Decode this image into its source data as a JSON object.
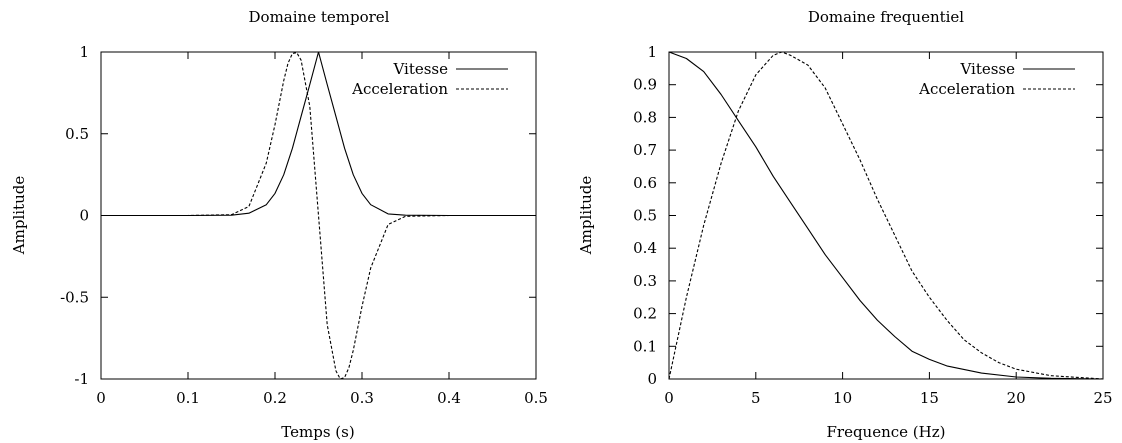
{
  "chart_data": [
    {
      "type": "line",
      "title": "Domaine temporel",
      "xlabel": "Temps (s)",
      "ylabel": "Amplitude",
      "xlim": [
        0,
        0.5
      ],
      "ylim": [
        -1,
        1
      ],
      "xticks": [
        0,
        0.1,
        0.2,
        0.3,
        0.4,
        0.5
      ],
      "xtick_labels": [
        "0",
        "0.1",
        "0.2",
        "0.3",
        "0.4",
        "0.5"
      ],
      "yticks": [
        -1,
        -0.5,
        0,
        0.5,
        1
      ],
      "ytick_labels": [
        "-1",
        "-0.5",
        "0",
        "0.5",
        "1"
      ],
      "grid": false,
      "legend_position": "top-right",
      "series": [
        {
          "name": "Vitesse",
          "style": "solid",
          "x": [
            0,
            0.1,
            0.15,
            0.17,
            0.19,
            0.2,
            0.21,
            0.22,
            0.23,
            0.24,
            0.25,
            0.26,
            0.27,
            0.28,
            0.29,
            0.3,
            0.31,
            0.33,
            0.35,
            0.4,
            0.5
          ],
          "y": [
            0,
            0,
            0.002,
            0.014,
            0.066,
            0.135,
            0.249,
            0.411,
            0.607,
            0.801,
            1.0,
            0.801,
            0.607,
            0.411,
            0.249,
            0.135,
            0.066,
            0.01,
            0.002,
            0,
            0
          ]
        },
        {
          "name": "Acceleration",
          "style": "dashed",
          "x": [
            0,
            0.1,
            0.15,
            0.17,
            0.19,
            0.2,
            0.21,
            0.215,
            0.22,
            0.225,
            0.23,
            0.24,
            0.25,
            0.26,
            0.27,
            0.275,
            0.28,
            0.285,
            0.29,
            0.3,
            0.31,
            0.33,
            0.35,
            0.4,
            0.5
          ],
          "y": [
            0,
            0,
            0.005,
            0.055,
            0.321,
            0.556,
            0.824,
            0.931,
            0.991,
            0.996,
            0.95,
            0.667,
            0,
            -0.667,
            -0.95,
            -1.0,
            -0.991,
            -0.931,
            -0.824,
            -0.556,
            -0.321,
            -0.055,
            -0.005,
            0,
            0
          ]
        }
      ]
    },
    {
      "type": "line",
      "title": "Domaine frequentiel",
      "xlabel": "Frequence (Hz)",
      "ylabel": "Amplitude",
      "xlim": [
        0,
        25
      ],
      "ylim": [
        0,
        1
      ],
      "xticks": [
        0,
        5,
        10,
        15,
        20,
        25
      ],
      "xtick_labels": [
        "0",
        "5",
        "10",
        "15",
        "20",
        "25"
      ],
      "yticks": [
        0,
        0.1,
        0.2,
        0.3,
        0.4,
        0.5,
        0.6,
        0.7,
        0.8,
        0.9,
        1
      ],
      "ytick_labels": [
        "0",
        "0.1",
        "0.2",
        "0.3",
        "0.4",
        "0.5",
        "0.6",
        "0.7",
        "0.8",
        "0.9",
        "1"
      ],
      "grid": false,
      "legend_position": "top-right",
      "series": [
        {
          "name": "Vitesse",
          "style": "solid",
          "x": [
            0,
            1,
            2,
            3,
            4,
            5,
            6,
            7,
            8,
            9,
            10,
            11,
            12,
            13,
            14,
            15,
            16,
            18,
            20,
            22,
            25
          ],
          "y": [
            1.0,
            0.98,
            0.94,
            0.87,
            0.79,
            0.71,
            0.62,
            0.54,
            0.46,
            0.38,
            0.31,
            0.24,
            0.18,
            0.13,
            0.085,
            0.06,
            0.04,
            0.018,
            0.006,
            0.002,
            0.0
          ]
        },
        {
          "name": "Acceleration",
          "style": "dashed",
          "x": [
            0,
            1,
            2,
            3,
            4,
            5,
            6,
            6.5,
            7,
            8,
            9,
            10,
            11,
            12,
            13,
            14,
            15,
            16,
            17,
            18,
            19,
            20,
            22,
            25
          ],
          "y": [
            0.0,
            0.25,
            0.47,
            0.66,
            0.82,
            0.93,
            0.99,
            1.0,
            0.99,
            0.96,
            0.89,
            0.78,
            0.67,
            0.55,
            0.44,
            0.33,
            0.25,
            0.18,
            0.12,
            0.08,
            0.05,
            0.03,
            0.01,
            0.0
          ]
        }
      ]
    }
  ]
}
